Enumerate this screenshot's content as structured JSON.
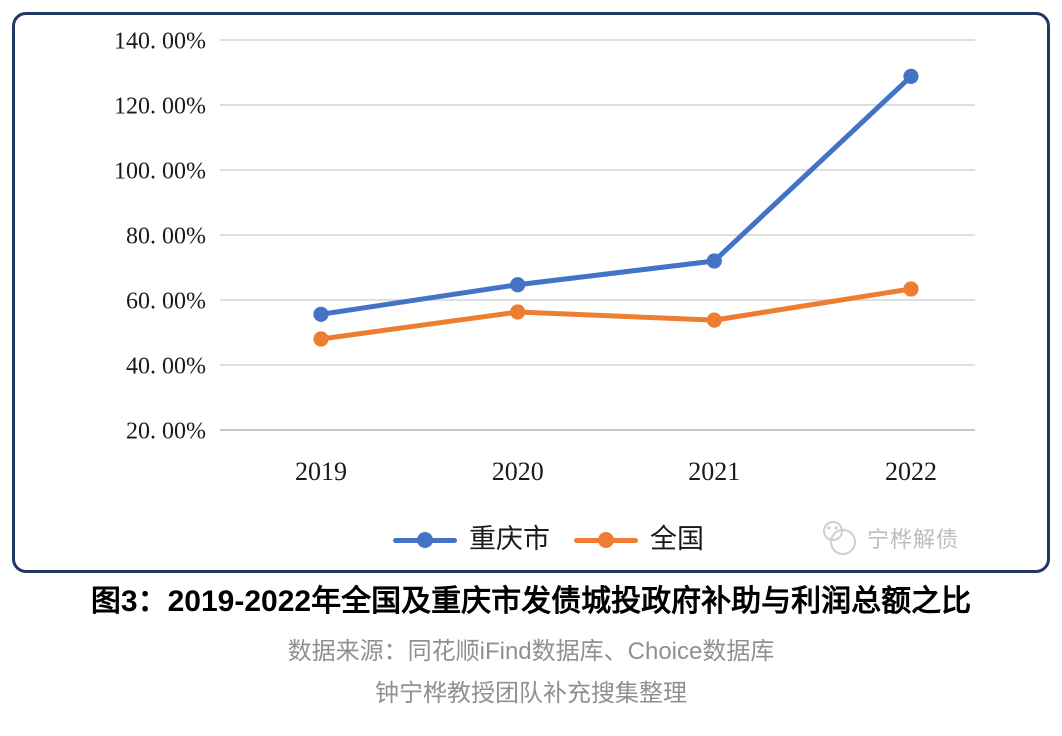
{
  "title": "图3：2019-2022年全国及重庆市发债城投政府补助与利润总额之比",
  "source_line1": "数据来源：同花顺iFind数据库、Choice数据库",
  "source_line2": "钟宁桦教授团队补充搜集整理",
  "watermark": {
    "text": "宁桦解债"
  },
  "colors": {
    "chongqing_blue": "#4472C4",
    "national_orange": "#ED7D31",
    "border_navy": "#1F3864",
    "gridline": "#D9D9D9",
    "axis_line": "#BFBFBF",
    "tick_text": "#1a1a1a",
    "source_gray": "#909090",
    "watermark_gray": "#bdbdbd"
  },
  "chart_data": {
    "type": "line",
    "categories": [
      "2019",
      "2020",
      "2021",
      "2022"
    ],
    "series": [
      {
        "name": "重庆市",
        "color": "#4472C4",
        "values": [
          55.6,
          64.7,
          72.0,
          128.8
        ]
      },
      {
        "name": "全国",
        "color": "#ED7D31",
        "values": [
          48.0,
          56.3,
          53.8,
          63.4
        ]
      }
    ],
    "ylim": [
      20,
      140
    ],
    "y_tick_values": [
      140,
      120,
      100,
      80,
      60,
      40,
      20
    ],
    "y_tick_labels": [
      "140. 00%",
      "120. 00%",
      "100. 00%",
      "80. 00%",
      "60. 00%",
      "40. 00%",
      "20. 00%"
    ],
    "grid": true,
    "legend_position": "bottom",
    "title": "图3：2019-2022年全国及重庆市发债城投政府补助与利润总额之比"
  }
}
